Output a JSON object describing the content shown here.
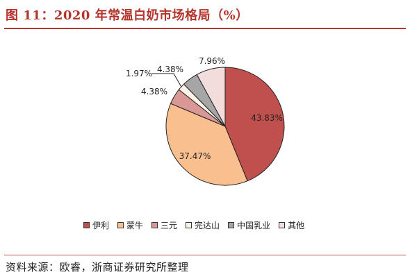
{
  "figure": {
    "title": "图 11：2020 年常温白奶市场格局（%）",
    "source": "资料来源：欧睿，浙商证券研究所整理"
  },
  "chart_data": {
    "type": "pie",
    "title": "",
    "unit": "%",
    "legend_position": "bottom",
    "slices": [
      {
        "name": "伊利",
        "value": 43.83,
        "label": "43.83%",
        "color": "#c0504d"
      },
      {
        "name": "蒙牛",
        "value": 37.47,
        "label": "37.47%",
        "color": "#f9bf8f"
      },
      {
        "name": "三元",
        "value": 4.38,
        "label": "4.38%",
        "color": "#d99795"
      },
      {
        "name": "完达山",
        "value": 1.97,
        "label": "1.97%",
        "color": "#fcf2e8"
      },
      {
        "name": "中国乳业",
        "value": 4.38,
        "label": "4.38%",
        "color": "#a6a6a6"
      },
      {
        "name": "其他",
        "value": 7.96,
        "label": "7.96%",
        "color": "#f3dcdc"
      }
    ]
  }
}
